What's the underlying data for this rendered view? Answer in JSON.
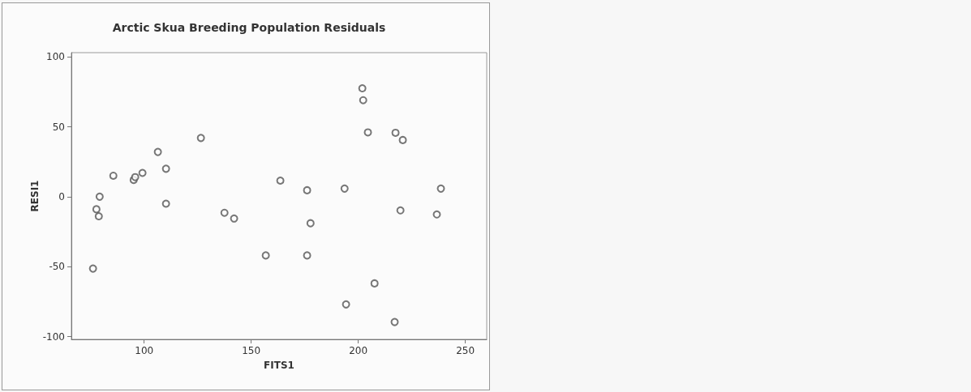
{
  "chart_data": {
    "type": "scatter",
    "title": "Arctic Skua Breeding Population Residuals",
    "xlabel": "FITS1",
    "ylabel": "RESI1",
    "x": [
      76.1,
      77.7,
      78.8,
      79.2,
      85.6,
      95.1,
      95.8,
      99.2,
      106.4,
      110.2,
      110.2,
      126.5,
      137.5,
      142,
      156.8,
      163.6,
      176.1,
      177.7,
      176.1,
      193.6,
      194.3,
      201.9,
      202.3,
      204.5,
      207.6,
      217.4,
      220.8,
      219.7,
      217,
      236.7,
      238.6
    ],
    "series": [
      {
        "color": "#555555",
        "values": [
          -51.4,
          -9,
          -14,
          0,
          15,
          12,
          14,
          17,
          32,
          20,
          -5,
          42,
          -11.5,
          -15.6,
          -42,
          11.5,
          4.6,
          -19,
          -42,
          5.8,
          -77,
          77.5,
          69,
          46,
          -62,
          45.7,
          40.5,
          -9.8,
          -89.6,
          -12.7,
          5.8
        ]
      }
    ],
    "xlim": [
      66,
      260
    ],
    "xticks": [
      100,
      150,
      200,
      250
    ],
    "ylim": [
      -102,
      103
    ],
    "yticks": [
      -100,
      -50,
      0,
      50,
      100
    ],
    "grid": false,
    "marker": "circle"
  }
}
